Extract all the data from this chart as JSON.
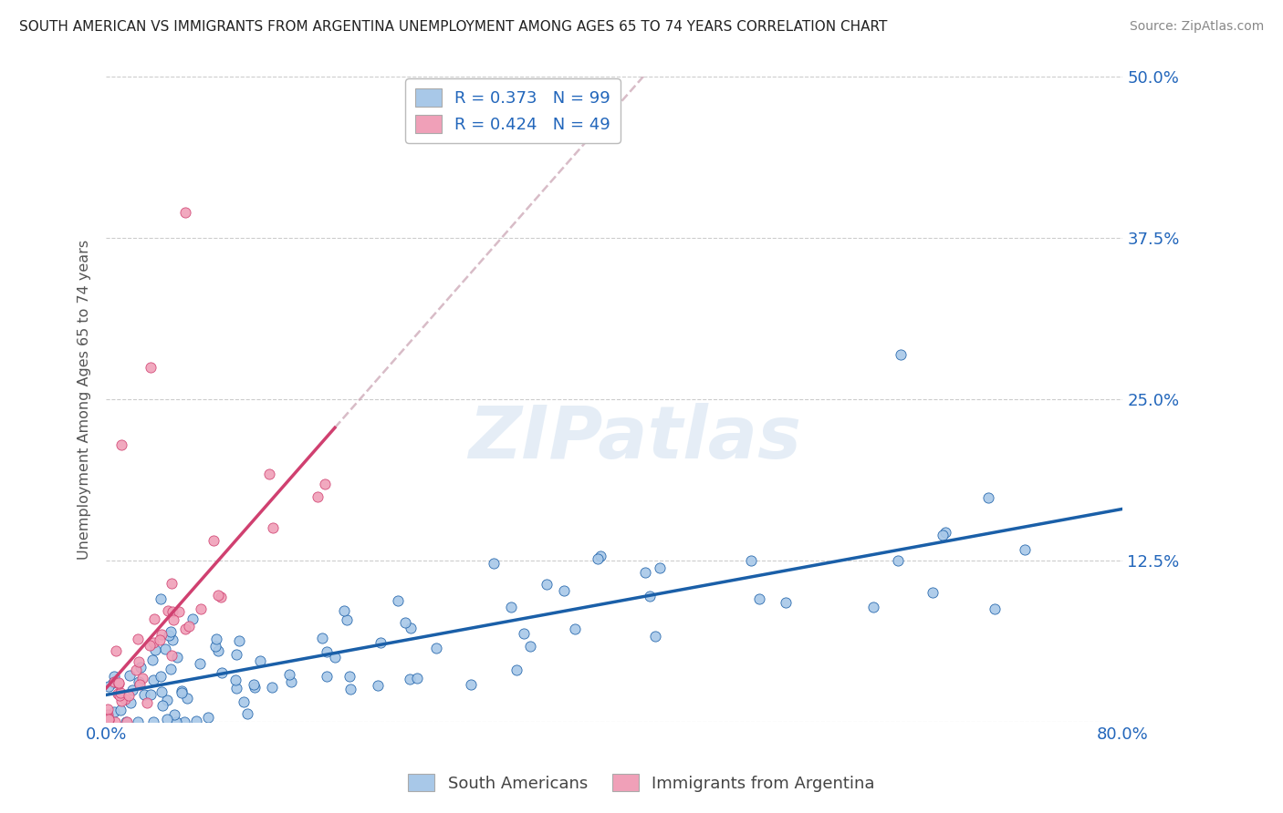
{
  "title": "SOUTH AMERICAN VS IMMIGRANTS FROM ARGENTINA UNEMPLOYMENT AMONG AGES 65 TO 74 YEARS CORRELATION CHART",
  "source": "Source: ZipAtlas.com",
  "ylabel": "Unemployment Among Ages 65 to 74 years",
  "xlim": [
    0.0,
    0.8
  ],
  "ylim": [
    0.0,
    0.5
  ],
  "ytick_vals": [
    0.0,
    0.125,
    0.25,
    0.375,
    0.5
  ],
  "ytick_labels": [
    "",
    "12.5%",
    "25.0%",
    "37.5%",
    "50.0%"
  ],
  "series1_color": "#a8c8e8",
  "series2_color": "#f0a0b8",
  "line1_color": "#1a5fa8",
  "line2_color": "#d04070",
  "line2_dashed_color": "#d0a0b0",
  "R1": 0.373,
  "N1": 99,
  "R2": 0.424,
  "N2": 49,
  "background_color": "#ffffff",
  "series1_label": "South Americans",
  "series2_label": "Immigrants from Argentina"
}
